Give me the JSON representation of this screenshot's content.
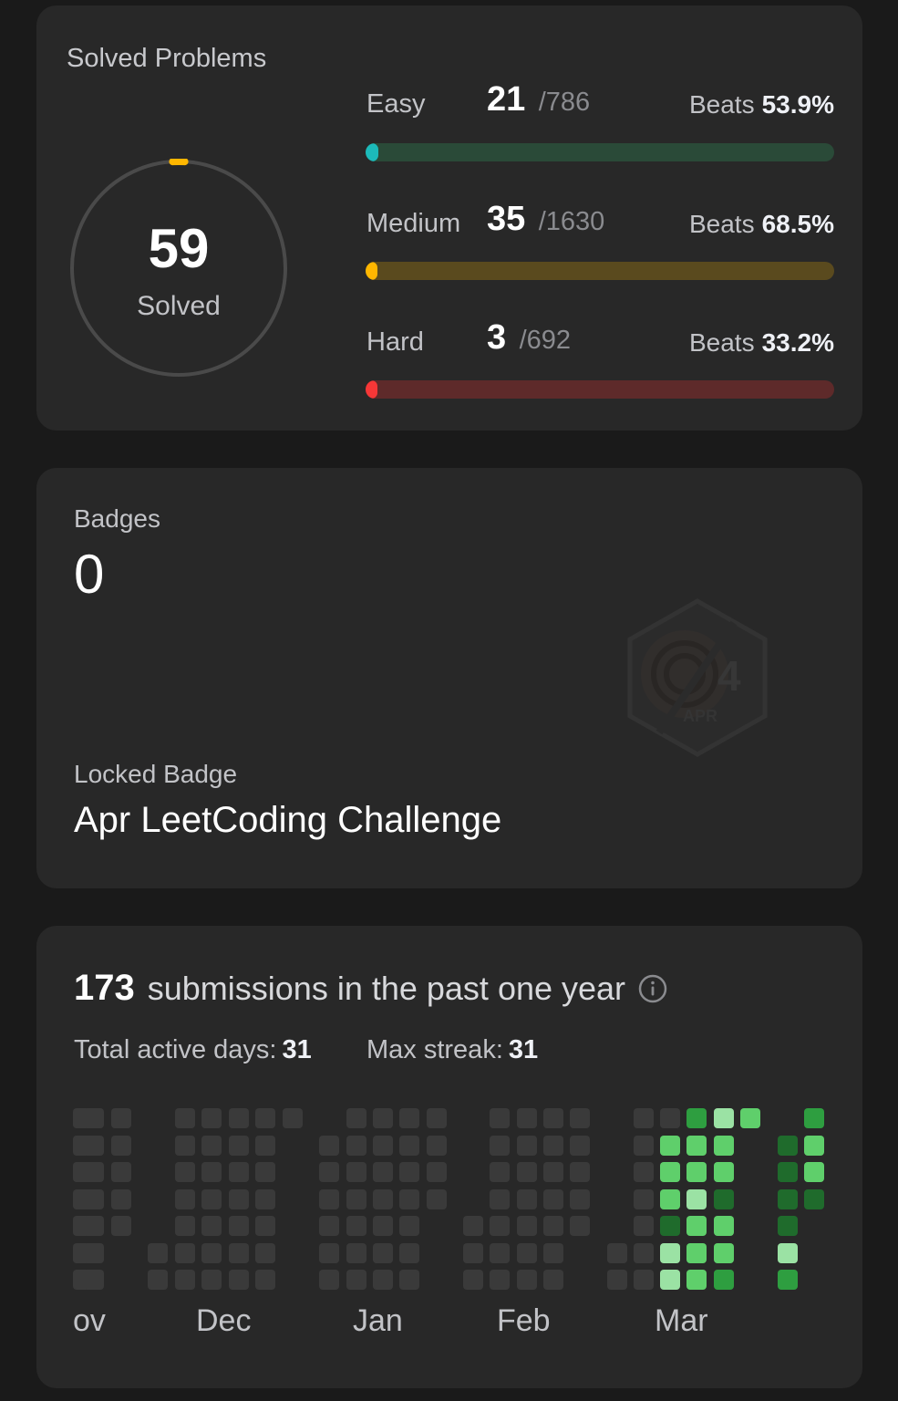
{
  "colors": {
    "easy": "#1cbaba",
    "easy_track": "#2a4a38",
    "medium": "#ffb700",
    "medium_track": "#5a4a1e",
    "hard": "#f63737",
    "hard_track": "#5e2a2a",
    "heat_empty": "#3a3a3a",
    "heat_level1": "#1f6b2c",
    "heat_level2": "#2e9e40",
    "heat_level3": "#5fcf6b",
    "heat_level4": "#9be2a4"
  },
  "solved": {
    "title": "Solved Problems",
    "total": "59",
    "total_label": "Solved",
    "total_progress": 0.018,
    "difficulties": [
      {
        "label": "Easy",
        "count": "21",
        "total": "/786",
        "beats_label": "Beats",
        "beats_value": "53.9%",
        "progress": 0.027
      },
      {
        "label": "Medium",
        "count": "35",
        "total": "/1630",
        "beats_label": "Beats",
        "beats_value": "68.5%",
        "progress": 0.021
      },
      {
        "label": "Hard",
        "count": "3",
        "total": "/692",
        "beats_label": "Beats",
        "beats_value": "33.2%",
        "progress": 0.004
      }
    ]
  },
  "badges": {
    "label": "Badges",
    "count": "0",
    "badge_icon": "apr-badge-icon",
    "locked_label": "Locked Badge",
    "locked_name": "Apr LeetCoding Challenge"
  },
  "submissions": {
    "count": "173",
    "text": "submissions in the past one year",
    "info_icon": "info-icon",
    "active_days_label": "Total active days:",
    "active_days_value": "31",
    "max_streak_label": "Max streak:",
    "max_streak_value": "31",
    "months": [
      "ov",
      "Dec",
      "Jan",
      "Feb",
      "Mar"
    ]
  }
}
